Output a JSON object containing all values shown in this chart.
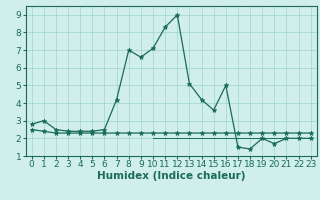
{
  "xlabel": "Humidex (Indice chaleur)",
  "x_values": [
    0,
    1,
    2,
    3,
    4,
    5,
    6,
    7,
    8,
    9,
    10,
    11,
    12,
    13,
    14,
    15,
    16,
    17,
    18,
    19,
    20,
    21,
    22,
    23
  ],
  "line1_y": [
    2.8,
    3.0,
    2.5,
    2.4,
    2.4,
    2.4,
    2.5,
    4.2,
    7.0,
    6.6,
    7.1,
    8.3,
    9.0,
    5.1,
    4.2,
    3.6,
    5.0,
    1.5,
    1.4,
    2.0,
    1.7,
    2.0,
    2.0,
    2.0
  ],
  "line2_y": [
    2.5,
    2.4,
    2.3,
    2.3,
    2.3,
    2.3,
    2.3,
    2.3,
    2.3,
    2.3,
    2.3,
    2.3,
    2.3,
    2.3,
    2.3,
    2.3,
    2.3,
    2.3,
    2.3,
    2.3,
    2.3,
    2.3,
    2.3,
    2.3
  ],
  "line3_x": [
    10,
    23
  ],
  "line3_y": [
    2.0,
    2.0
  ],
  "line1_color": "#1a6b5a",
  "bg_color": "#d0eeea",
  "grid_color": "#9fd4cc",
  "marker": "*",
  "ylim": [
    1.0,
    9.5
  ],
  "xlim": [
    -0.5,
    23.5
  ],
  "yticks": [
    1,
    2,
    3,
    4,
    5,
    6,
    7,
    8,
    9
  ],
  "xticks": [
    0,
    1,
    2,
    3,
    4,
    5,
    6,
    7,
    8,
    9,
    10,
    11,
    12,
    13,
    14,
    15,
    16,
    17,
    18,
    19,
    20,
    21,
    22,
    23
  ],
  "tick_fontsize": 6.5,
  "xlabel_fontsize": 7.5
}
